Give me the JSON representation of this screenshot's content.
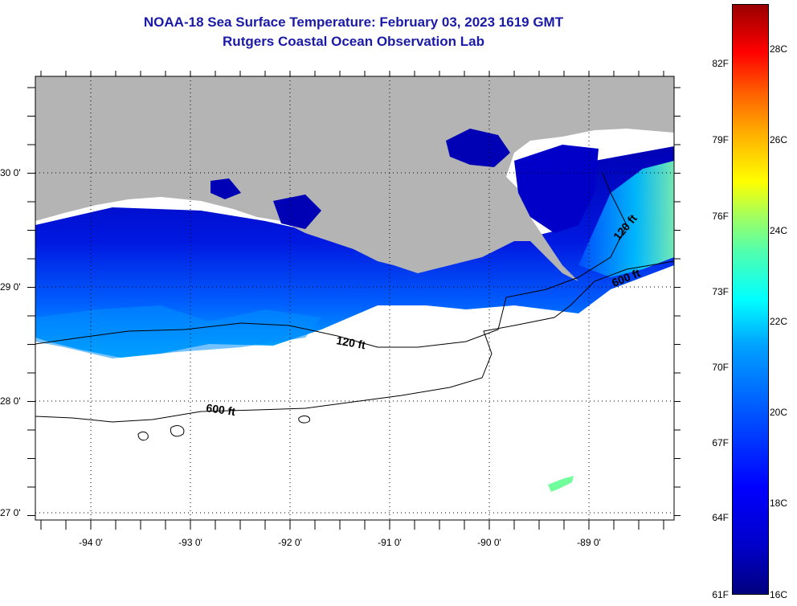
{
  "title": {
    "line1": "NOAA-18 Sea Surface Temperature:  February 03, 2023 1619 GMT",
    "line2": "Rutgers Coastal Ocean Observation Lab"
  },
  "axes": {
    "longitude_labels": [
      "-94 0'",
      "-93 0'",
      "-92 0'",
      "-91 0'",
      "-90 0'",
      "-89 0'"
    ],
    "latitude_labels": [
      "30 0'",
      "29 0'",
      "28 0'",
      "27 0'"
    ]
  },
  "contours": {
    "shelf_120": "120 ft",
    "shelf_600": "600 ft"
  },
  "colorbar": {
    "fahrenheit_labels": [
      "82F",
      "79F",
      "76F",
      "73F",
      "70F",
      "67F",
      "64F",
      "61F"
    ],
    "celsius_labels": [
      "28C",
      "26C",
      "24C",
      "22C",
      "20C",
      "18C",
      "16C"
    ]
  },
  "colors": {
    "land": "#b4b4b4",
    "title": "#1a1aa6",
    "sst_cold": "#0000c8",
    "sst_warm": "#00c8ff"
  }
}
